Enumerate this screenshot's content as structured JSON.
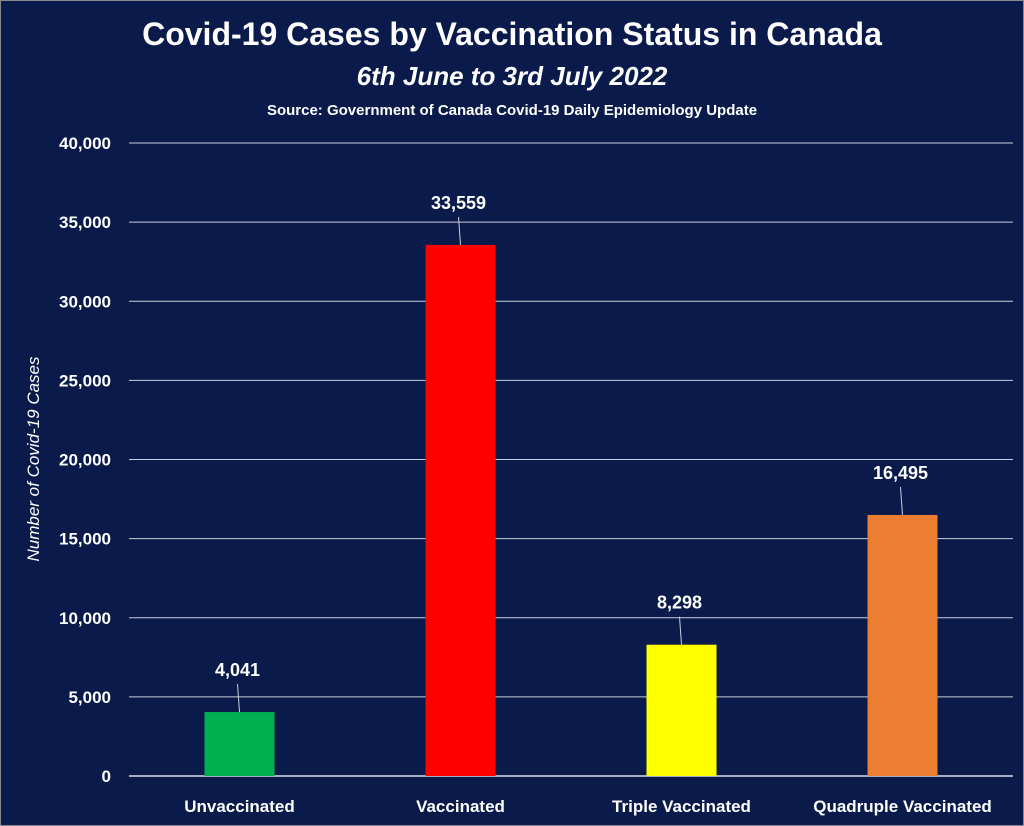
{
  "chart_data": {
    "type": "bar",
    "title": "Covid-19 Cases by Vaccination Status in Canada",
    "subtitle": "6th June to 3rd July 2022",
    "source": "Source: Government of Canada  Covid-19 Daily Epidemiology Update",
    "xlabel": "",
    "ylabel": "Number of Covid-19 Cases",
    "ylim": [
      0,
      40000
    ],
    "yticks": [
      0,
      5000,
      10000,
      15000,
      20000,
      25000,
      30000,
      35000,
      40000
    ],
    "ytick_labels": [
      "0",
      "5,000",
      "10,000",
      "15,000",
      "20,000",
      "25,000",
      "30,000",
      "35,000",
      "40,000"
    ],
    "categories": [
      "Unvaccinated",
      "Vaccinated",
      "Triple Vaccinated",
      "Quadruple Vaccinated"
    ],
    "values": [
      4041,
      33559,
      8298,
      16495
    ],
    "data_labels": [
      "4,041",
      "33,559",
      "8,298",
      "16,495"
    ],
    "bar_colors": [
      "#00b050",
      "#ff0000",
      "#ffff00",
      "#ed7d31"
    ],
    "background_color": "#0a1a4a",
    "grid": true,
    "legend": "none"
  }
}
